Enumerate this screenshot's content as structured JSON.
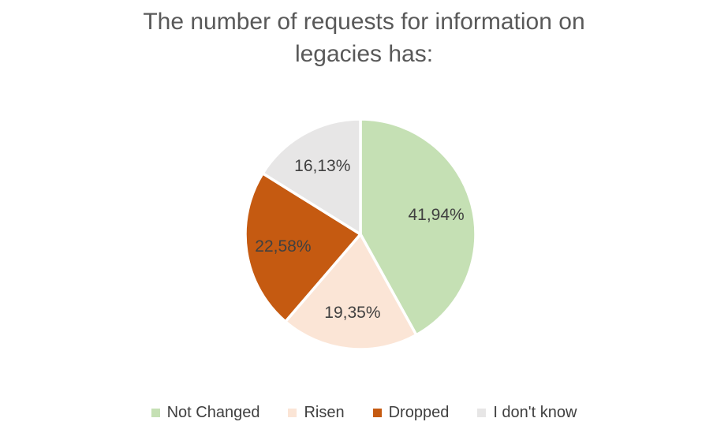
{
  "chart_data": {
    "type": "pie",
    "title": "The number of requests for information on legacies has:",
    "slices": [
      {
        "label": "Not Changed",
        "value": 41.94,
        "display": "41,94%",
        "color": "#c5e0b4"
      },
      {
        "label": "Risen",
        "value": 19.35,
        "display": "19,35%",
        "color": "#fbe5d6"
      },
      {
        "label": "Dropped",
        "value": 22.58,
        "display": "22,58%",
        "color": "#c55a11"
      },
      {
        "label": "I don't know",
        "value": 16.13,
        "display": "16,13%",
        "color": "#e7e6e6"
      }
    ],
    "start_angle_deg": 0,
    "direction": "clockwise",
    "data_labels": "inside",
    "decimal_separator": ",",
    "legend_position": "bottom",
    "title_color": "#595959",
    "label_color": "#404040",
    "slice_border_color": "#ffffff",
    "background": "#ffffff"
  }
}
